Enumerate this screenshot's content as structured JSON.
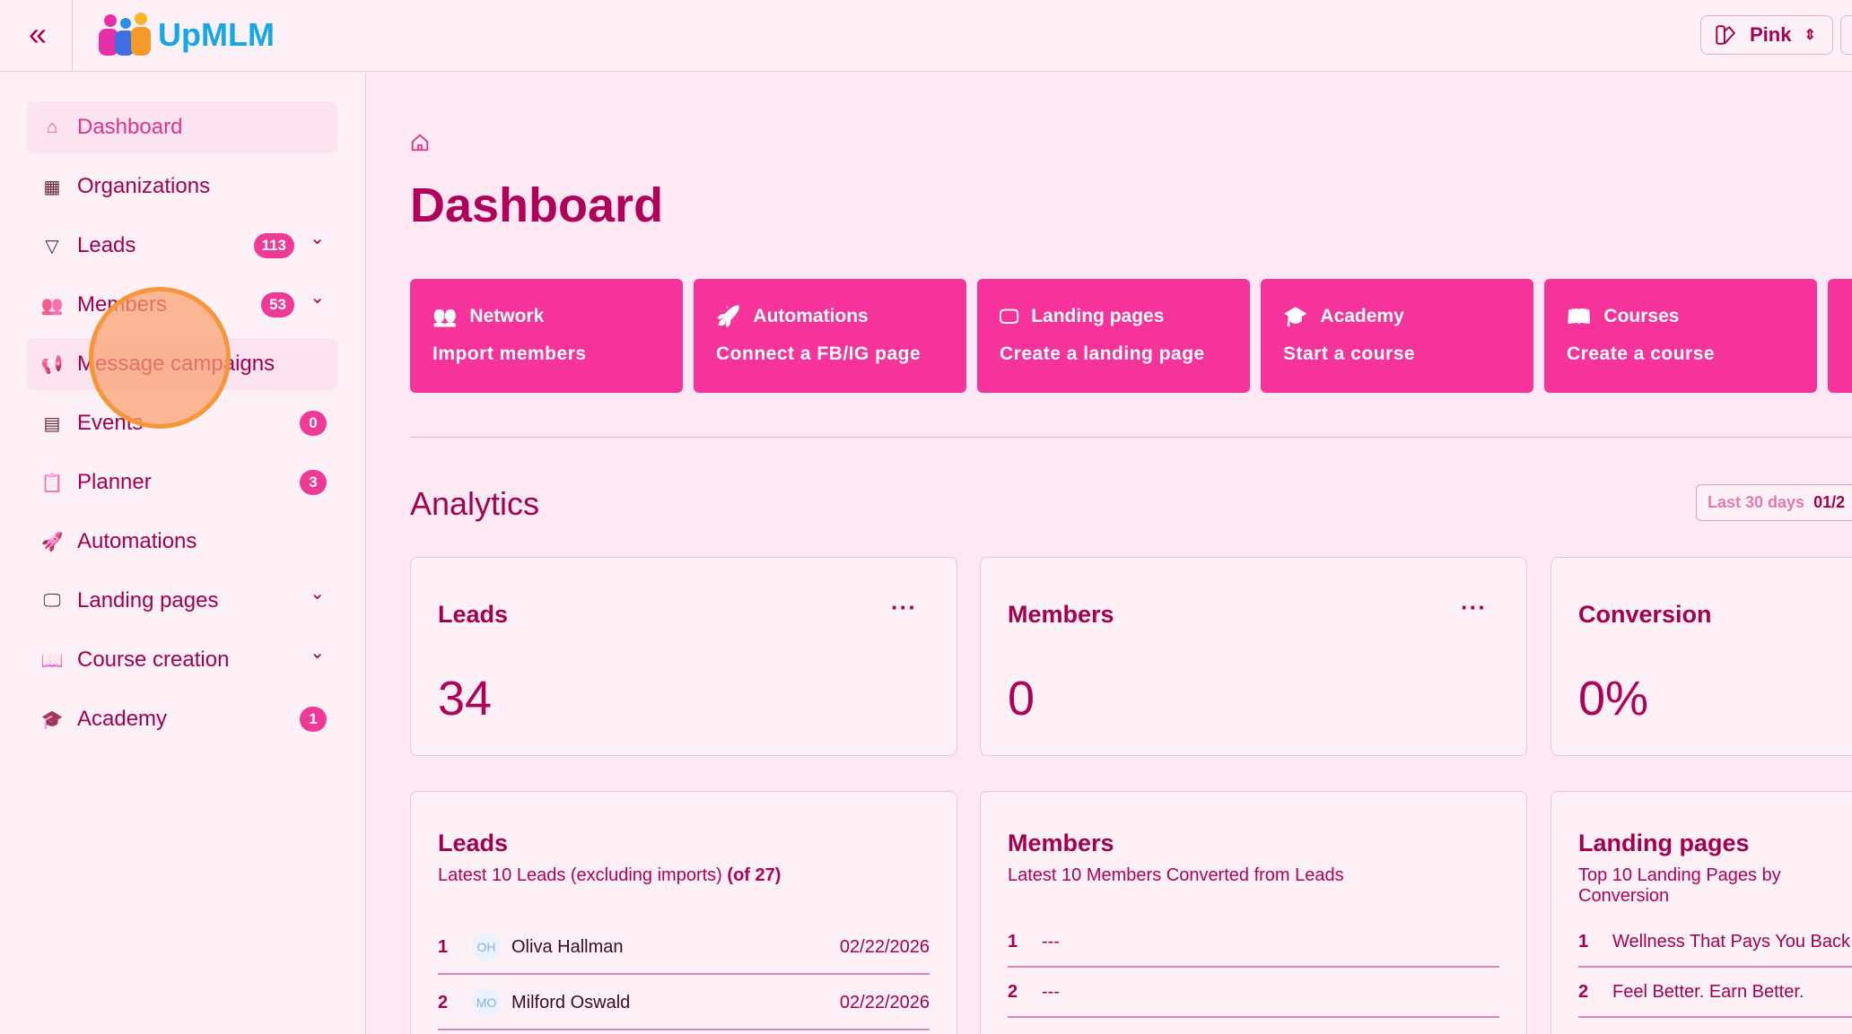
{
  "header": {
    "brand": "UpMLM",
    "theme_label": "Pink"
  },
  "sidebar": {
    "items": [
      {
        "label": "Dashboard",
        "icon": "home-icon"
      },
      {
        "label": "Organizations",
        "icon": "building-icon"
      },
      {
        "label": "Leads",
        "icon": "funnel-icon",
        "badge": "113",
        "expandable": true
      },
      {
        "label": "Members",
        "icon": "users-icon",
        "badge": "53",
        "expandable": true
      },
      {
        "label": "Message campaigns",
        "icon": "megaphone-icon"
      },
      {
        "label": "Events",
        "icon": "calendar-icon",
        "badge": "0"
      },
      {
        "label": "Planner",
        "icon": "clipboard-icon",
        "badge": "3"
      },
      {
        "label": "Automations",
        "icon": "rocket-icon"
      },
      {
        "label": "Landing pages",
        "icon": "monitor-icon",
        "expandable": true
      },
      {
        "label": "Course creation",
        "icon": "book-icon",
        "expandable": true
      },
      {
        "label": "Academy",
        "icon": "graduation-cap-icon",
        "badge": "1"
      }
    ]
  },
  "main": {
    "title": "Dashboard",
    "actions": [
      {
        "title": "Network",
        "subtitle": "Import members",
        "icon": "users-icon"
      },
      {
        "title": "Automations",
        "subtitle": "Connect a FB/IG page",
        "icon": "rocket-icon"
      },
      {
        "title": "Landing pages",
        "subtitle": "Create a landing page",
        "icon": "monitor-icon"
      },
      {
        "title": "Academy",
        "subtitle": "Start a course",
        "icon": "graduation-cap-icon"
      },
      {
        "title": "Courses",
        "subtitle": "Create a course",
        "icon": "book-icon"
      }
    ],
    "analytics_title": "Analytics",
    "date_filter": {
      "label": "Last 30 days",
      "value": "01/2"
    },
    "stats": [
      {
        "label": "Leads",
        "value": "34"
      },
      {
        "label": "Members",
        "value": "0"
      },
      {
        "label": "Conversion",
        "value": "0%"
      }
    ],
    "leads_list": {
      "title": "Leads",
      "subtitle": "Latest 10 Leads (excluding imports)",
      "count": "(of 27)",
      "rows": [
        {
          "n": "1",
          "initials": "OH",
          "name": "Oliva Hallman",
          "date": "02/22/2026"
        },
        {
          "n": "2",
          "initials": "MO",
          "name": "Milford Oswald",
          "date": "02/22/2026"
        }
      ]
    },
    "members_list": {
      "title": "Members",
      "subtitle": "Latest 10 Members Converted from Leads",
      "rows": [
        {
          "n": "1",
          "name": "---"
        },
        {
          "n": "2",
          "name": "---"
        }
      ]
    },
    "landing_list": {
      "title": "Landing pages",
      "subtitle": "Top 10 Landing Pages by Conversion",
      "rows": [
        {
          "n": "1",
          "name": "Wellness That Pays You Back"
        },
        {
          "n": "2",
          "name": "Feel Better. Earn Better."
        }
      ]
    }
  },
  "colors": {
    "accent": "#f5339a",
    "text": "#a3004f",
    "background": "#fde8f3",
    "brand": "#17a6e6"
  }
}
